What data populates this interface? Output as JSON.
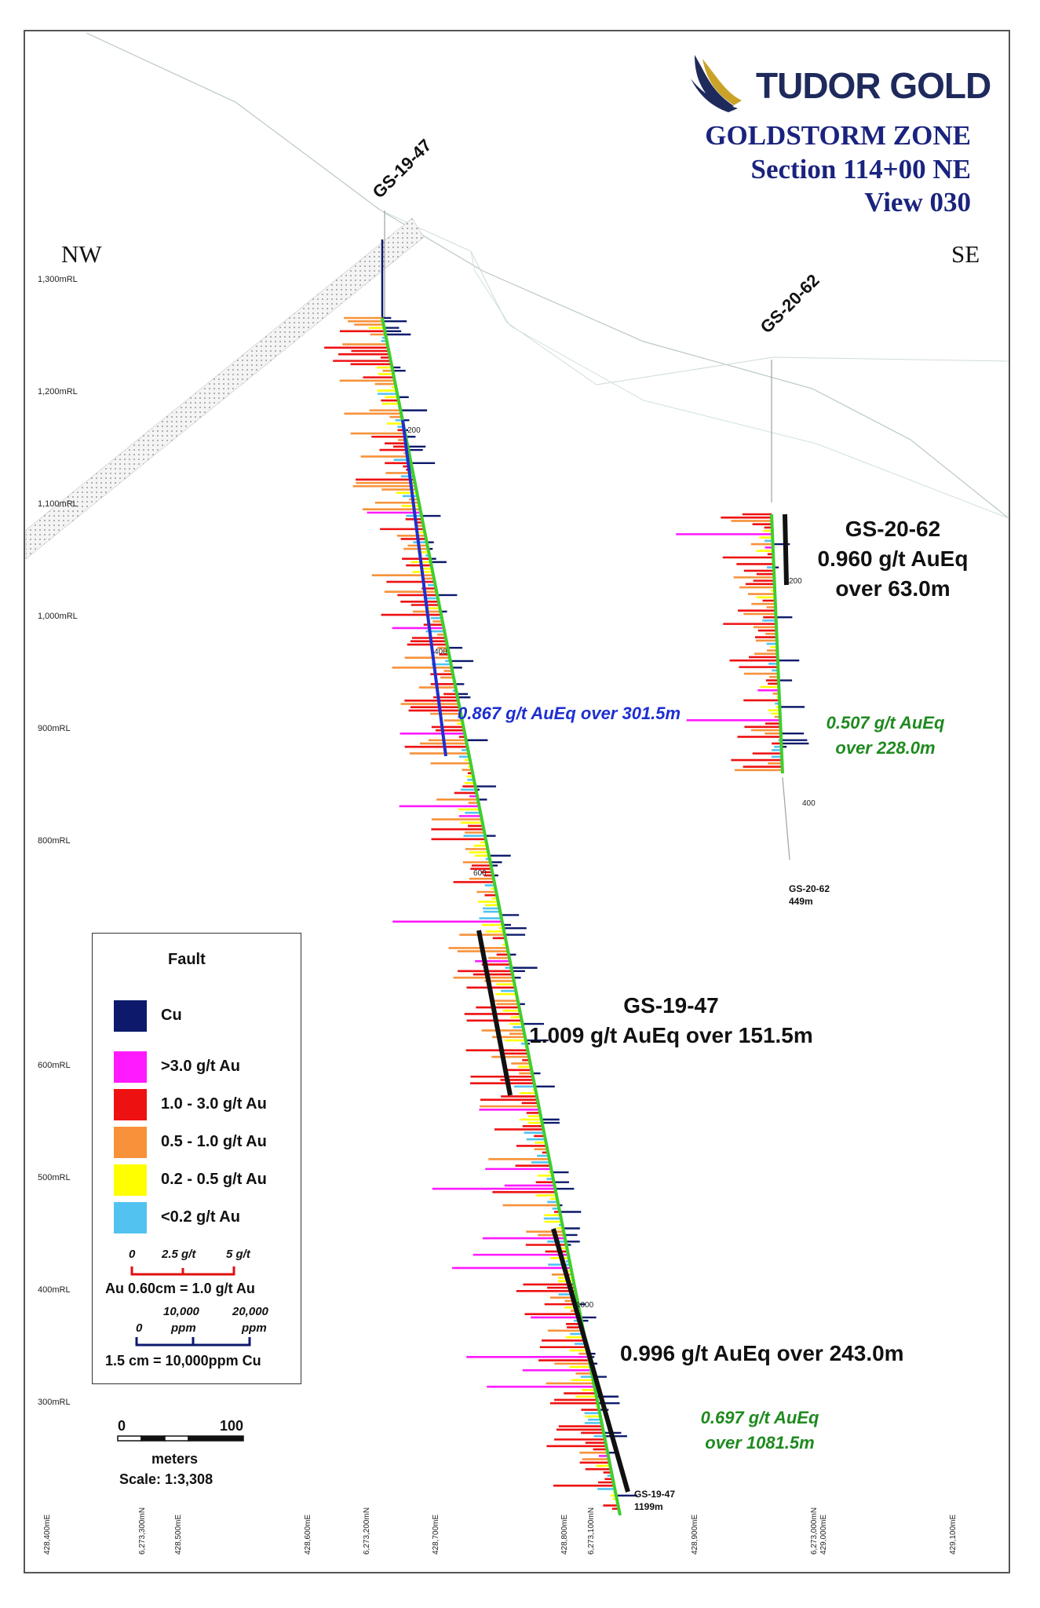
{
  "logo": {
    "text": "TUDOR GOLD",
    "colors": {
      "wing_dark": "#1f2a5c",
      "wing_gold": "#c9a227"
    }
  },
  "title": {
    "line1": "GOLDSTORM ZONE",
    "line2": "Section 114+00 NE",
    "line3": "View 030"
  },
  "directions": {
    "left": "NW",
    "right": "SE"
  },
  "elevation_labels": [
    "1,300mRL",
    "1,200mRL",
    "1,100mRL",
    "1,000mRL",
    "900mRL",
    "800mRL",
    "600mRL",
    "500mRL",
    "400mRL",
    "300mRL"
  ],
  "easting_labels": [
    "428,400mE",
    "6,273,300mN",
    "428,500mE",
    "428,600mE",
    "6,273,200mN",
    "428,700mE",
    "428,800mE",
    "6,273,100mN",
    "428,900mE",
    "6,273,000mN",
    "429,000mE",
    "429,100mE"
  ],
  "holes": [
    {
      "id": "GS-19-47",
      "end_label": "GS-19-47",
      "end_depth": "1199m",
      "depth_ticks": [
        "200",
        "400",
        "600",
        "1000"
      ]
    },
    {
      "id": "GS-20-62",
      "end_label": "GS-20-62",
      "end_depth": "449m",
      "depth_ticks": [
        "200",
        "400"
      ]
    }
  ],
  "annotations": {
    "gs2062_hole": "GS-20-62",
    "gs2062_grade": "0.960 g/t AuEq",
    "gs2062_over": "over 63.0m",
    "gs2062_green_1": "0.507 g/t AuEq",
    "gs2062_green_2": "over 228.0m",
    "gs1947_blue": "0.867 g/t AuEq over 301.5m",
    "gs1947_hole": "GS-19-47",
    "gs1947_grade": "1.009 g/t AuEq over 151.5m",
    "gs1947_lower": "0.996 g/t AuEq over 243.0m",
    "gs1947_green_1": "0.697 g/t AuEq",
    "gs1947_green_2": "over 1081.5m"
  },
  "legend": {
    "fault": "Fault",
    "cu": "Cu",
    "items": [
      {
        "label": ">3.0 g/t Au",
        "color": "#ff1aff"
      },
      {
        "label": "1.0 - 3.0 g/t Au",
        "color": "#ee1111"
      },
      {
        "label": "0.5 - 1.0 g/t Au",
        "color": "#f7923a"
      },
      {
        "label": "0.2 - 0.5 g/t Au",
        "color": "#ffff00"
      },
      {
        "label": "<0.2 g/t Au",
        "color": "#52c2f0"
      }
    ],
    "cu_color": "#0d1a6b",
    "au_scale": {
      "t0": "0",
      "t1": "2.5 g/t",
      "t2": "5 g/t",
      "caption": "Au 0.60cm = 1.0 g/t Au"
    },
    "cu_scale": {
      "t0": "0",
      "t1a": "10,000",
      "t1b": "ppm",
      "t2a": "20,000",
      "t2b": "ppm",
      "caption": "1.5 cm = 10,000ppm Cu"
    },
    "scalebar": {
      "t0": "0",
      "t1": "100",
      "unit": "meters",
      "scale": "Scale: 1:3,308"
    }
  }
}
